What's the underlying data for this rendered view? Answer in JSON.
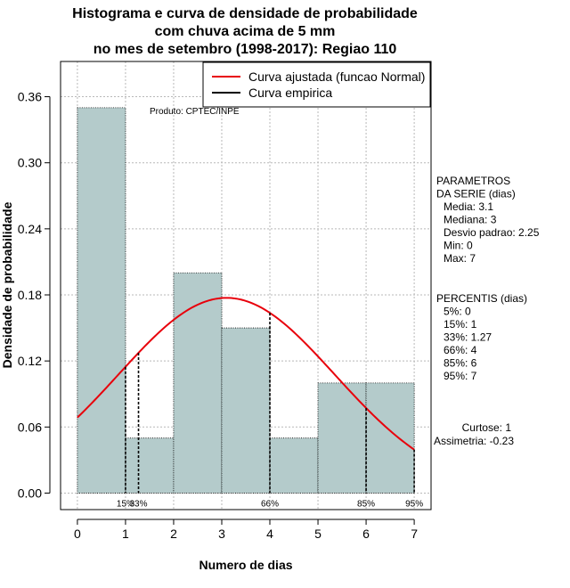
{
  "chart_data": {
    "type": "bar",
    "title": [
      "Histograma e curva de densidade de probabilidade",
      "com chuva acima de 5 mm",
      "no mes de setembro (1998-2017): Regiao 110"
    ],
    "xlabel": "Numero de dias",
    "ylabel": "Densidade de probabilidade",
    "xlim": [
      -0.35,
      7.35
    ],
    "ylim": [
      -0.015,
      0.392
    ],
    "x_ticks": [
      0,
      1,
      2,
      3,
      4,
      5,
      6,
      7
    ],
    "y_ticks": [
      0.0,
      0.06,
      0.12,
      0.18,
      0.24,
      0.3,
      0.36
    ],
    "y_tick_labels": [
      "0.00",
      "0.06",
      "0.12",
      "0.18",
      "0.24",
      "0.30",
      "0.36"
    ],
    "grid": true,
    "bins": [
      {
        "start": 0,
        "end": 1,
        "density": 0.35
      },
      {
        "start": 1,
        "end": 2,
        "density": 0.05
      },
      {
        "start": 2,
        "end": 3,
        "density": 0.2
      },
      {
        "start": 3,
        "end": 4,
        "density": 0.15
      },
      {
        "start": 4,
        "end": 5,
        "density": 0.05
      },
      {
        "start": 5,
        "end": 6,
        "density": 0.1
      },
      {
        "start": 6,
        "end": 7,
        "density": 0.1
      }
    ],
    "bar_color": "#b4cbcb",
    "fitted_curve": {
      "name": "Curva ajustada (funcao Normal)",
      "color": "#e8000b",
      "distribution": "normal",
      "mean": 3.1,
      "sd": 2.25,
      "x_range": [
        0,
        7
      ]
    },
    "empirical_curve": {
      "name": "Curva empirica",
      "color": "#000000"
    },
    "percentile_markers": [
      {
        "label": "15%",
        "x": 1
      },
      {
        "label": "33%",
        "x": 1.27
      },
      {
        "label": "66%",
        "x": 4
      },
      {
        "label": "85%",
        "x": 6
      },
      {
        "label": "95%",
        "x": 7
      }
    ],
    "legend_position": "top-right",
    "annotation": "Produto: CPTEC/INPE"
  },
  "parameters": {
    "heading": [
      "PARAMETROS",
      "DA SERIE (dias)"
    ],
    "items": [
      "Media: 3.1",
      "Mediana: 3",
      "Desvio padrao: 2.25",
      "Min: 0",
      "Max: 7"
    ]
  },
  "percentiles": {
    "heading": "PERCENTIS (dias)",
    "items": [
      "5%: 0",
      "15%: 1",
      "33%: 1.27",
      "66%: 4",
      "85%: 6",
      "95%: 7"
    ]
  },
  "stats": {
    "kurtosis": "Curtose: 1",
    "skewness": "Assimetria: -0.23"
  }
}
